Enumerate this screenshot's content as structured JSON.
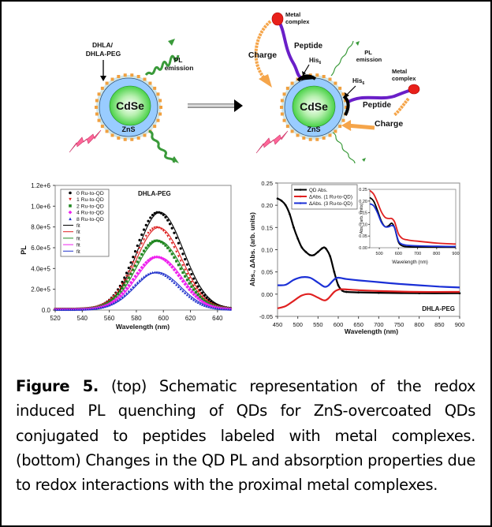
{
  "figure": {
    "caption_label": "Figure 5.",
    "caption_text": " (top) Schematic representation of the redox induced PL quenching of QDs for ZnS-overcoated QDs conjugated to peptides labeled with metal complexes. (bottom) Changes in the QD PL and absorption properties due to redox interactions with the proximal metal complexes."
  },
  "schematic": {
    "left": {
      "ligand_label_1": "DHLA/",
      "ligand_label_2": "DHLA-PEG",
      "emission_label_1": "PL",
      "emission_label_2": "emission",
      "core_label": "CdSe",
      "shell_label": "ZnS"
    },
    "right": {
      "metal_label_1": "Metal",
      "metal_label_2": "complex",
      "peptide_label": "Peptide",
      "his_label": "His",
      "his_sub": "6",
      "charge_label": "Charge",
      "emission_label_1": "PL",
      "emission_label_2": "emission",
      "core_label": "CdSe",
      "shell_label": "ZnS"
    },
    "colors": {
      "core": "#33cc33",
      "shell": "#99ccff",
      "ligand_dots": "#f0a040",
      "emission": "#3a9a3a",
      "excitation": "#ff6699",
      "peptide": "#6a1fc8",
      "metal": "#e8201a",
      "charge_arrow": "#f5a54a"
    }
  },
  "chart_data": [
    {
      "type": "scatter",
      "title": "DHLA-PEG",
      "xlabel": "Wavelength (nm)",
      "ylabel": "PL",
      "xlim": [
        520,
        650
      ],
      "ylim": [
        0,
        1200000
      ],
      "xticks": [
        520,
        540,
        560,
        580,
        600,
        620,
        640
      ],
      "yticks": [
        0,
        200000,
        400000,
        600000,
        800000,
        1000000,
        1200000
      ],
      "ytick_labels": [
        "0.0",
        "2.0e+5",
        "4.0e+5",
        "6.0e+5",
        "8.0e+5",
        "1.0e+6",
        "1.2e+6"
      ],
      "legend_position": "top-left",
      "fit_legend_label": "fit",
      "series": [
        {
          "name": "0 Ru-to-QD",
          "color": "#000000",
          "marker": "circle",
          "peak_x": 596,
          "peak_y": 930000,
          "width": 16.5
        },
        {
          "name": "1 Ru-to-QD",
          "color": "#dd2222",
          "marker": "triangle-down",
          "peak_x": 595,
          "peak_y": 785000,
          "width": 16.5
        },
        {
          "name": "2 Ru-to-QD",
          "color": "#228822",
          "marker": "square",
          "peak_x": 595,
          "peak_y": 660000,
          "width": 16.5
        },
        {
          "name": "4 Ru-to-QD",
          "color": "#ee22ee",
          "marker": "diamond",
          "peak_x": 595,
          "peak_y": 505000,
          "width": 16.5
        },
        {
          "name": "8 Ru-to-QD",
          "color": "#2233cc",
          "marker": "triangle-up",
          "peak_x": 594,
          "peak_y": 360000,
          "width": 16.5
        }
      ]
    },
    {
      "type": "line",
      "title": "DHLA-PEG",
      "xlabel": "Wavelength (nm)",
      "ylabel": "Abs., ΔAbs. (arb. units)",
      "xlim": [
        450,
        900
      ],
      "ylim": [
        -0.05,
        0.25
      ],
      "xticks": [
        450,
        500,
        550,
        600,
        650,
        700,
        750,
        800,
        850,
        900
      ],
      "yticks": [
        -0.05,
        0.0,
        0.05,
        0.1,
        0.15,
        0.2,
        0.25
      ],
      "ytick_labels": [
        "-0.05",
        "0.00",
        "0.05",
        "0.10",
        "0.15",
        "0.20",
        "0.25"
      ],
      "legend_position": "top-left",
      "series": [
        {
          "name": "QD Abs.",
          "color": "#000000",
          "x": [
            450,
            460,
            470,
            480,
            490,
            500,
            510,
            520,
            530,
            540,
            550,
            560,
            565,
            570,
            580,
            590,
            600,
            610,
            620,
            650,
            700,
            800,
            900
          ],
          "y": [
            0.215,
            0.21,
            0.2,
            0.18,
            0.15,
            0.125,
            0.105,
            0.095,
            0.088,
            0.088,
            0.095,
            0.103,
            0.105,
            0.102,
            0.085,
            0.05,
            0.02,
            0.008,
            0.005,
            0.004,
            0.003,
            0.002,
            0.002
          ]
        },
        {
          "name": "ΔAbs. (1 Ru-to-QD)",
          "color": "#e02020",
          "x": [
            450,
            470,
            490,
            510,
            530,
            550,
            565,
            575,
            590,
            600,
            610,
            650,
            700,
            800,
            900
          ],
          "y": [
            -0.032,
            -0.027,
            -0.015,
            -0.003,
            0.0,
            -0.008,
            -0.014,
            -0.01,
            0.005,
            0.01,
            0.011,
            0.009,
            0.007,
            0.005,
            0.005
          ]
        },
        {
          "name": "ΔAbs. (3 Ru-to-QD)",
          "color": "#1a2fd6",
          "x": [
            450,
            470,
            490,
            510,
            530,
            550,
            565,
            575,
            590,
            600,
            620,
            650,
            700,
            750,
            800,
            850,
            900
          ],
          "y": [
            0.02,
            0.021,
            0.032,
            0.038,
            0.037,
            0.026,
            0.017,
            0.019,
            0.033,
            0.037,
            0.034,
            0.031,
            0.027,
            0.023,
            0.02,
            0.017,
            0.015
          ]
        }
      ],
      "inset": {
        "type": "line",
        "xlabel": "Wavelength (nm)",
        "ylabel": "Abs. (arb. units)",
        "xlim": [
          450,
          900
        ],
        "ylim": [
          0,
          0.25
        ],
        "xticks": [
          500,
          600,
          700,
          800,
          900
        ],
        "yticks": [
          0,
          0.05,
          0.1,
          0.15,
          0.2,
          0.25
        ],
        "ytick_labels": [
          "0.00",
          "0.05",
          "0.10",
          "0.15",
          "0.20",
          "0.25"
        ],
        "series": [
          {
            "name": "QD Abs.",
            "color": "#000000",
            "x": [
              450,
              470,
              490,
              510,
              530,
              550,
              565,
              580,
              600,
              620,
              650,
              700,
              900
            ],
            "y": [
              0.215,
              0.2,
              0.16,
              0.115,
              0.09,
              0.095,
              0.105,
              0.085,
              0.025,
              0.008,
              0.004,
              0.003,
              0.002
            ]
          },
          {
            "name": "ΔAbs. (1 Ru-to-QD)",
            "color": "#e02020",
            "x": [
              450,
              470,
              490,
              510,
              530,
              550,
              565,
              580,
              600,
              620,
              650,
              700,
              800,
              900
            ],
            "y": [
              0.245,
              0.23,
              0.195,
              0.155,
              0.13,
              0.125,
              0.125,
              0.11,
              0.06,
              0.04,
              0.033,
              0.028,
              0.02,
              0.016
            ]
          },
          {
            "name": "ΔAbs. (3 Ru-to-QD)",
            "color": "#1a2fd6",
            "x": [
              450,
              470,
              490,
              510,
              530,
              550,
              565,
              580,
              600,
              620,
              650,
              700,
              800,
              900
            ],
            "y": [
              0.188,
              0.18,
              0.15,
              0.11,
              0.09,
              0.09,
              0.095,
              0.085,
              0.03,
              0.015,
              0.01,
              0.008,
              0.006,
              0.005
            ]
          }
        ]
      }
    }
  ]
}
